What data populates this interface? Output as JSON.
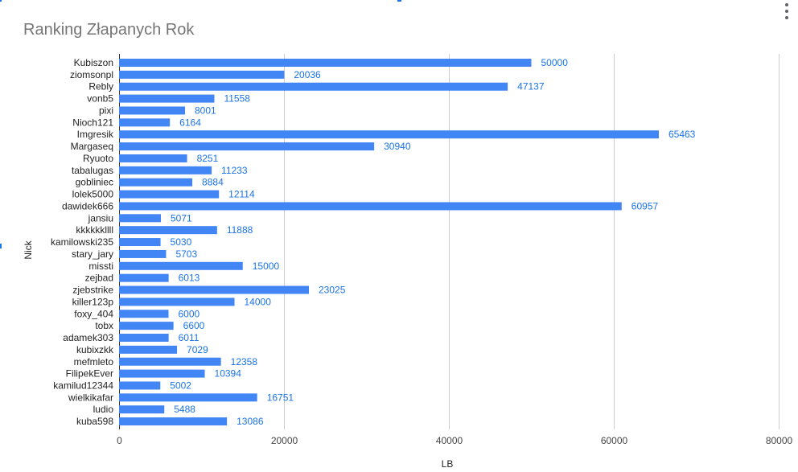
{
  "chart_data": {
    "type": "bar",
    "orientation": "horizontal",
    "title": "Ranking Złapanych Rok",
    "xlabel": "LB",
    "ylabel": "Nick",
    "xlim": [
      0,
      80000
    ],
    "xticks": [
      "0",
      "20000",
      "40000",
      "60000",
      "80000"
    ],
    "grid": true,
    "bar_color": "#4285f4",
    "label_color": "#1a73e8",
    "categories": [
      "Kubiszon",
      "ziomsonpl",
      "Rebly",
      "vonb5",
      "pixi",
      "Nioch121",
      "Imgresik",
      "Margaseq",
      "Ryuoto",
      "tabalugas",
      "gobliniec",
      "lolek5000",
      "dawidek666",
      "jansiu",
      "kkkkkkllll",
      "kamilowski235",
      "stary_jary",
      "missti",
      "zejbad",
      "zjebstrike",
      "killer123p",
      "foxy_404",
      "tobx",
      "adamek303",
      "kubixzkk",
      "mefmleto",
      "FilipekEver",
      "kamilud12344",
      "wielkikafar",
      "ludio",
      "kuba598"
    ],
    "values": [
      50000,
      20036,
      47137,
      11558,
      8001,
      6164,
      65463,
      30940,
      8251,
      11233,
      8884,
      12114,
      60957,
      5071,
      11888,
      5030,
      5703,
      15000,
      6013,
      23025,
      14000,
      6000,
      6600,
      6011,
      7029,
      12358,
      10394,
      5002,
      16751,
      5488,
      13086
    ]
  },
  "icons": {
    "menu": "more-vert-icon"
  }
}
